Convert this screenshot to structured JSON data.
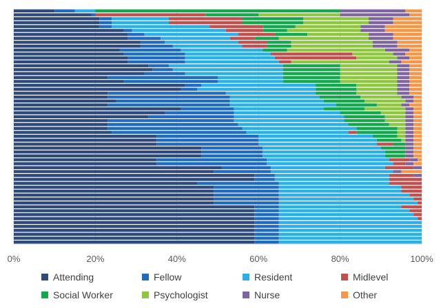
{
  "chart_data": {
    "type": "bar",
    "orientation": "horizontal",
    "stacking": "percent",
    "xlim": [
      0,
      100
    ],
    "x_ticks": [
      "0%",
      "20%",
      "40%",
      "60%",
      "80%",
      "100%"
    ],
    "grid": true,
    "legend_position": "bottom",
    "series": [
      {
        "name": "Attending",
        "color": "#2E4A7A",
        "values": [
          10,
          19,
          21,
          21,
          21,
          27,
          28,
          28,
          31,
          31,
          26,
          27,
          28,
          28,
          33,
          34,
          32,
          23,
          27,
          42,
          41,
          23,
          23,
          25,
          23,
          41,
          37,
          33,
          23,
          23,
          23,
          24,
          35,
          35,
          35,
          46,
          46,
          46,
          35,
          35,
          51,
          49,
          59,
          59,
          45,
          49,
          49,
          49,
          49,
          49,
          59,
          59,
          59,
          59,
          59,
          59,
          59,
          59,
          59,
          59
        ]
      },
      {
        "name": "Fellow",
        "color": "#1F6BC2",
        "values": [
          5,
          1,
          3,
          3,
          3,
          2,
          4,
          8,
          6,
          8,
          15,
          15,
          14,
          14,
          5,
          5,
          10,
          27,
          23,
          4,
          4,
          29,
          30,
          28,
          30,
          13,
          17,
          21,
          31,
          32,
          33,
          33,
          25,
          25,
          25,
          15,
          15,
          15,
          27,
          27,
          12,
          14,
          5,
          5,
          20,
          16,
          16,
          16,
          16,
          16,
          6,
          6,
          6,
          6,
          6,
          6,
          6,
          6,
          6,
          6
        ]
      },
      {
        "name": "Resident",
        "color": "#2AAFE6",
        "values": [
          5,
          0,
          14,
          14,
          24,
          23,
          23,
          17,
          18,
          17,
          20,
          21,
          22,
          23,
          28,
          27,
          24,
          16,
          16,
          28,
          29,
          22,
          22,
          23,
          26,
          22,
          26,
          27,
          27,
          27,
          28,
          25,
          28,
          29,
          29,
          29,
          30,
          30,
          30,
          31,
          28,
          30,
          28,
          28,
          27,
          30,
          30,
          32,
          33,
          34,
          30,
          32,
          33,
          34,
          35,
          35,
          35,
          35,
          35,
          35
        ]
      },
      {
        "name": "Midlevel",
        "color": "#C0504D",
        "values": [
          0,
          27,
          18,
          18,
          13,
          9,
          9,
          6,
          7,
          6,
          0,
          20,
          20,
          3,
          0,
          0,
          0,
          0,
          0,
          0,
          0,
          0,
          0,
          0,
          0,
          0,
          0,
          0,
          0,
          0,
          0,
          2,
          0,
          0,
          4,
          0,
          0,
          0,
          5,
          3,
          7,
          0,
          6,
          8,
          8,
          5,
          5,
          3,
          2,
          1,
          5,
          3,
          2,
          1,
          0,
          0,
          0,
          0,
          0,
          0
        ]
      },
      {
        "name": "Social Worker",
        "color": "#12A84C",
        "values": [
          60,
          13,
          15,
          15,
          8,
          6,
          8,
          6,
          6,
          6,
          6,
          0,
          0,
          0,
          14,
          14,
          14,
          14,
          14,
          10,
          10,
          10,
          10,
          10,
          10,
          10,
          10,
          10,
          10,
          10,
          10,
          10,
          6,
          6,
          3,
          6,
          5,
          5,
          0,
          0,
          0,
          0,
          0,
          0,
          0,
          0,
          0,
          0,
          0,
          0,
          0,
          0,
          0,
          0,
          0,
          0,
          0,
          0,
          0,
          0
        ]
      },
      {
        "name": "Psychologist",
        "color": "#8DC63F",
        "values": [
          0,
          20,
          16,
          16,
          16,
          18,
          15,
          22,
          20,
          20,
          24,
          10,
          10,
          24,
          14,
          14,
          14,
          14,
          14,
          10,
          10,
          10,
          10,
          10,
          6,
          10,
          6,
          5,
          5,
          4,
          2,
          2,
          2,
          1,
          0,
          0,
          0,
          0,
          0,
          0,
          0,
          0,
          0,
          0,
          0,
          0,
          0,
          0,
          0,
          0,
          0,
          0,
          0,
          0,
          0,
          0,
          0,
          0,
          0,
          0
        ]
      },
      {
        "name": "Nurse",
        "color": "#8064A2",
        "values": [
          16,
          17,
          6,
          6,
          6,
          6,
          6,
          6,
          6,
          6,
          6,
          3,
          3,
          3,
          3,
          3,
          3,
          3,
          3,
          3,
          3,
          3,
          3,
          2,
          2,
          2,
          2,
          2,
          2,
          2,
          2,
          2,
          2,
          2,
          2,
          2,
          2,
          2,
          2,
          2,
          2,
          2,
          2,
          0,
          0,
          0,
          0,
          0,
          0,
          0,
          0,
          0,
          0,
          0,
          0,
          0,
          0,
          0,
          0,
          0
        ]
      },
      {
        "name": "Other",
        "color": "#F79646",
        "values": [
          4,
          3,
          7,
          7,
          9,
          9,
          7,
          7,
          6,
          6,
          3,
          4,
          3,
          5,
          3,
          3,
          3,
          3,
          3,
          3,
          3,
          3,
          2,
          2,
          3,
          2,
          2,
          2,
          2,
          2,
          2,
          2,
          2,
          2,
          2,
          2,
          2,
          2,
          1,
          2,
          0,
          5,
          0,
          0,
          0,
          0,
          0,
          0,
          0,
          0,
          0,
          0,
          0,
          0,
          0,
          0,
          0,
          0,
          0,
          0
        ]
      }
    ]
  }
}
